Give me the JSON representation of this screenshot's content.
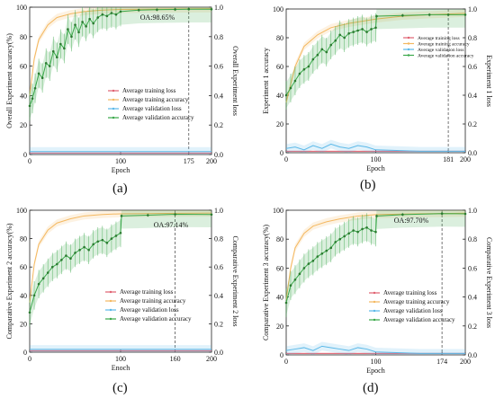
{
  "figure": {
    "captions": [
      "(a)",
      "(b)",
      "(c)",
      "(d)"
    ]
  },
  "chart_data": [
    {
      "type": "line",
      "panel": "a",
      "xlabel": "Epoch",
      "ylabel_left": "Overall Experiment accuracy(%)",
      "ylabel_right": "Overall Experiment loss",
      "xlim": [
        0,
        200
      ],
      "ylim_left": [
        0,
        100
      ],
      "ylim_right": [
        0,
        1.0
      ],
      "x_ticks": [
        "0",
        "100",
        "175",
        "200"
      ],
      "x_tick_values": [
        0,
        100,
        175,
        200
      ],
      "y_ticks_left": [
        "0",
        "20",
        "40",
        "60",
        "80",
        "100"
      ],
      "y_ticks_right": [
        "0.0",
        "0.2",
        "0.4",
        "0.6",
        "0.8",
        "1.0"
      ],
      "vline_epoch": 175,
      "annotation": "OA:98.65%",
      "legend": [
        "Average training loss",
        "Average training accuracy",
        "Average validation loss",
        "Average validation accuracy"
      ],
      "legend_position": "lower-middle",
      "series": [
        {
          "name": "Average training loss",
          "color": "#e06070",
          "x": [
            0,
            10,
            30,
            60,
            100,
            150,
            200
          ],
          "y": [
            0.01,
            0.01,
            0.01,
            0.01,
            0.01,
            0.01,
            0.01
          ]
        },
        {
          "name": "Average training accuracy",
          "color": "#f4b860",
          "x": [
            0,
            5,
            10,
            20,
            30,
            45,
            60,
            80,
            100,
            150,
            200
          ],
          "y": [
            40,
            65,
            78,
            88,
            93,
            95.5,
            97,
            98,
            98.5,
            98.8,
            99
          ]
        },
        {
          "name": "Average validation loss",
          "color": "#5ab8e8",
          "x": [
            0,
            10,
            30,
            60,
            100,
            150,
            200
          ],
          "y": [
            0.02,
            0.02,
            0.02,
            0.02,
            0.02,
            0.02,
            0.02
          ]
        },
        {
          "name": "Average validation accuracy",
          "color": "#3aa84a",
          "x": [
            0,
            3,
            6,
            10,
            14,
            18,
            22,
            26,
            30,
            34,
            38,
            42,
            46,
            50,
            54,
            58,
            62,
            66,
            70,
            75,
            80,
            85,
            90,
            95,
            100,
            120,
            140,
            160,
            175,
            200
          ],
          "y": [
            33,
            38,
            45,
            55,
            52,
            62,
            60,
            70,
            66,
            75,
            72,
            85,
            80,
            88,
            83,
            90,
            87,
            92,
            89,
            93,
            95,
            94,
            96,
            95,
            97,
            98,
            98.3,
            98.5,
            98.65,
            98.6
          ]
        }
      ]
    },
    {
      "type": "line",
      "panel": "b",
      "xlabel": "Epoch",
      "ylabel_left": "Experiment 1 accuracy",
      "ylabel_right": "Experiment 1 loss",
      "xlim": [
        0,
        200
      ],
      "ylim_left": [
        0,
        100
      ],
      "ylim_right": [
        0,
        1.0
      ],
      "x_ticks": [
        "0",
        "100",
        "181",
        "200"
      ],
      "x_tick_values": [
        0,
        100,
        181,
        200
      ],
      "y_ticks_left": [
        "0",
        "20",
        "40",
        "60",
        "80",
        "100"
      ],
      "y_ticks_right": [
        "0.0",
        "0.2",
        "0.4",
        "0.6",
        "0.8",
        "1.0"
      ],
      "vline_epoch": 181,
      "annotation": "",
      "legend": [
        "Average training loss",
        "Average training accuracy",
        "Average validation loss",
        "Average validation accuracy"
      ],
      "legend_position": "middle-right",
      "series": [
        {
          "name": "Average training loss",
          "color": "#e06070",
          "x": [
            0,
            50,
            100,
            150,
            200
          ],
          "y": [
            0.01,
            0.01,
            0.01,
            0.01,
            0.01
          ]
        },
        {
          "name": "Average training accuracy",
          "color": "#f4b860",
          "x": [
            0,
            10,
            20,
            35,
            50,
            70,
            100,
            130,
            160,
            200
          ],
          "y": [
            35,
            60,
            74,
            82,
            87,
            90,
            93,
            95,
            96,
            97
          ]
        },
        {
          "name": "Average validation loss",
          "color": "#5ab8e8",
          "x": [
            0,
            10,
            20,
            30,
            40,
            50,
            60,
            70,
            80,
            90,
            100,
            150,
            200
          ],
          "y": [
            0.03,
            0.04,
            0.02,
            0.05,
            0.03,
            0.06,
            0.04,
            0.03,
            0.05,
            0.04,
            0.02,
            0.01,
            0.01
          ]
        },
        {
          "name": "Average validation accuracy",
          "color": "#3aa84a",
          "x": [
            0,
            5,
            10,
            15,
            20,
            25,
            30,
            35,
            40,
            45,
            50,
            55,
            60,
            65,
            70,
            75,
            80,
            85,
            90,
            95,
            100,
            101,
            130,
            160,
            181,
            200
          ],
          "y": [
            40,
            45,
            50,
            55,
            58,
            60,
            65,
            68,
            72,
            70,
            75,
            78,
            82,
            80,
            83,
            84,
            85,
            86,
            84,
            86,
            87,
            95,
            95.5,
            96,
            96,
            96
          ]
        }
      ]
    },
    {
      "type": "line",
      "panel": "c",
      "xlabel": "Enoch",
      "ylabel_left": "Comparative Experiment 2 accuracy(%)",
      "ylabel_right": "Comparative Experiment 2 loss",
      "xlim": [
        0,
        200
      ],
      "ylim_left": [
        0,
        100
      ],
      "ylim_right": [
        0,
        1.0
      ],
      "x_ticks": [
        "0",
        "100",
        "160",
        "200"
      ],
      "x_tick_values": [
        0,
        100,
        160,
        200
      ],
      "y_ticks_left": [
        "0",
        "20",
        "40",
        "60",
        "80",
        "100"
      ],
      "y_ticks_right": [
        "0.0",
        "0.2",
        "0.4",
        "0.6",
        "0.8",
        "1.0"
      ],
      "vline_epoch": 160,
      "annotation": "OA:97.14%",
      "legend": [
        "Average training loss",
        "Average training accuracy",
        "Average validation loss",
        "Average validation accuracy"
      ],
      "legend_position": "lower-middle",
      "series": [
        {
          "name": "Average training loss",
          "color": "#e06070",
          "x": [
            0,
            50,
            100,
            150,
            200
          ],
          "y": [
            0.01,
            0.01,
            0.01,
            0.01,
            0.01
          ]
        },
        {
          "name": "Average training accuracy",
          "color": "#f4b860",
          "x": [
            0,
            5,
            10,
            20,
            30,
            45,
            60,
            80,
            100,
            150,
            200
          ],
          "y": [
            35,
            62,
            76,
            86,
            91,
            94,
            96,
            97,
            97.5,
            97.8,
            98
          ]
        },
        {
          "name": "Average validation loss",
          "color": "#5ab8e8",
          "x": [
            0,
            50,
            100,
            150,
            200
          ],
          "y": [
            0.02,
            0.02,
            0.02,
            0.02,
            0.02
          ]
        },
        {
          "name": "Average validation accuracy",
          "color": "#3aa84a",
          "x": [
            0,
            5,
            10,
            15,
            20,
            25,
            30,
            35,
            40,
            45,
            50,
            55,
            60,
            65,
            70,
            75,
            80,
            85,
            90,
            95,
            100,
            101,
            130,
            160,
            200
          ],
          "y": [
            28,
            40,
            48,
            52,
            56,
            60,
            62,
            65,
            68,
            66,
            70,
            72,
            74,
            72,
            76,
            78,
            79,
            77,
            80,
            82,
            84,
            96,
            96.5,
            97.14,
            97
          ]
        }
      ]
    },
    {
      "type": "line",
      "panel": "d",
      "xlabel": "Epoch",
      "ylabel_left": "Comparative Experiment 3 accuracy(%)",
      "ylabel_right": "Comparative Experiment 3 loss",
      "xlim": [
        0,
        200
      ],
      "ylim_left": [
        0,
        100
      ],
      "ylim_right": [
        0,
        1.0
      ],
      "x_ticks": [
        "0",
        "100",
        "174",
        "200"
      ],
      "x_tick_values": [
        0,
        100,
        174,
        200
      ],
      "y_ticks_left": [
        "0",
        "20",
        "40",
        "60",
        "80",
        "100"
      ],
      "y_ticks_right": [
        "0.0",
        "0.2",
        "0.4",
        "0.6",
        "0.8",
        "1.0"
      ],
      "vline_epoch": 174,
      "annotation": "OA:97.70%",
      "legend": [
        "Average training loss",
        "Average training accuracy",
        "Average validation loss",
        "Average validation accuracy"
      ],
      "legend_position": "lower-middle",
      "series": [
        {
          "name": "Average training loss",
          "color": "#e06070",
          "x": [
            0,
            50,
            100,
            150,
            200
          ],
          "y": [
            0.01,
            0.01,
            0.01,
            0.01,
            0.01
          ]
        },
        {
          "name": "Average training accuracy",
          "color": "#f4b860",
          "x": [
            0,
            5,
            10,
            20,
            30,
            45,
            60,
            80,
            100,
            150,
            200
          ],
          "y": [
            38,
            60,
            74,
            84,
            89,
            92,
            94,
            96,
            97,
            97.6,
            98
          ]
        },
        {
          "name": "Average validation loss",
          "color": "#5ab8e8",
          "x": [
            0,
            10,
            20,
            30,
            40,
            50,
            60,
            70,
            80,
            90,
            100,
            150,
            200
          ],
          "y": [
            0.03,
            0.04,
            0.05,
            0.03,
            0.06,
            0.05,
            0.04,
            0.03,
            0.05,
            0.04,
            0.02,
            0.01,
            0.01
          ]
        },
        {
          "name": "Average validation accuracy",
          "color": "#3aa84a",
          "x": [
            0,
            5,
            10,
            15,
            20,
            25,
            30,
            35,
            40,
            45,
            50,
            55,
            60,
            65,
            70,
            75,
            80,
            85,
            90,
            95,
            100,
            101,
            130,
            174,
            200
          ],
          "y": [
            36,
            48,
            52,
            56,
            60,
            63,
            65,
            68,
            70,
            72,
            74,
            78,
            80,
            82,
            84,
            86,
            85,
            87,
            88,
            86,
            85,
            96,
            97,
            97.7,
            97.5
          ]
        }
      ]
    }
  ]
}
